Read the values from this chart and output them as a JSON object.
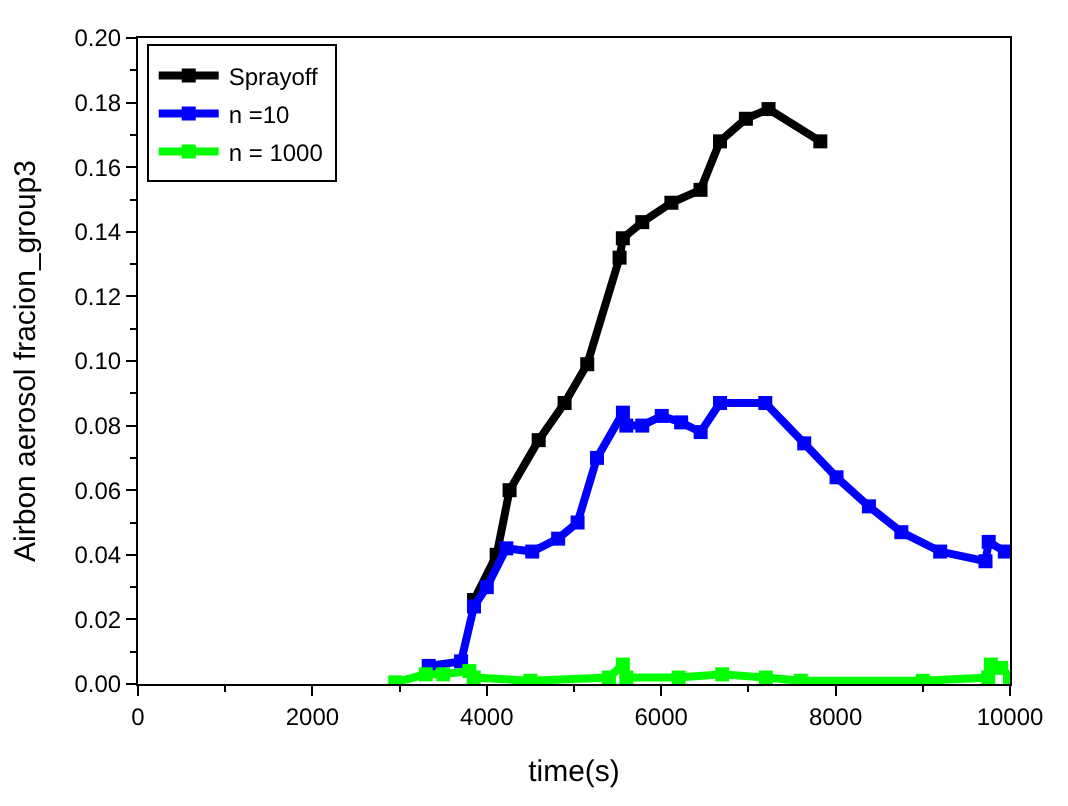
{
  "chart_data": {
    "type": "line",
    "xlabel": "time(s)",
    "ylabel": "Airbon aerosol fracion_group3",
    "xlim": [
      0,
      10000
    ],
    "xticks": [
      0,
      2000,
      4000,
      6000,
      8000,
      10000
    ],
    "ylim": [
      0,
      0.2
    ],
    "yticks": [
      {
        "value": 0,
        "label": "0.00"
      },
      {
        "value": 0.02,
        "label": "0.02"
      },
      {
        "value": 0.04,
        "label": "0.04"
      },
      {
        "value": 0.06,
        "label": "0.06"
      },
      {
        "value": 0.08,
        "label": "0.08"
      },
      {
        "value": 0.1,
        "label": "0.10"
      },
      {
        "value": 0.12,
        "label": "0.12"
      },
      {
        "value": 0.14,
        "label": "0.14"
      },
      {
        "value": 0.16,
        "label": "0.16"
      },
      {
        "value": 0.18,
        "label": "0.18"
      },
      {
        "value": 0.2,
        "label": "0.20"
      }
    ],
    "legend": "top left",
    "marker": "square",
    "line_style": "solid",
    "series": [
      {
        "name": "Sprayoff",
        "color": "#000000",
        "x": [
          3853,
          4113,
          4261,
          4595,
          4892,
          5152,
          5523,
          5560,
          5783,
          6117,
          6451,
          6674,
          6971,
          7231,
          7825
        ],
        "values": [
          0.026,
          0.04,
          0.06,
          0.0755,
          0.087,
          0.099,
          0.132,
          0.138,
          0.143,
          0.149,
          0.153,
          0.168,
          0.175,
          0.178,
          0.168
        ]
      },
      {
        "name": "n =10",
        "color": "#0000ff",
        "x": [
          3334,
          3705,
          3853,
          4000,
          4224,
          4521,
          4818,
          5041,
          5264,
          5561,
          5600,
          5783,
          6006,
          6229,
          6452,
          6674,
          7194,
          7640,
          8011,
          8382,
          8754,
          9199,
          9719,
          9756,
          9941
        ],
        "values": [
          0.0056,
          0.007,
          0.024,
          0.03,
          0.042,
          0.041,
          0.045,
          0.05,
          0.07,
          0.084,
          0.08,
          0.08,
          0.083,
          0.081,
          0.078,
          0.087,
          0.087,
          0.0745,
          0.064,
          0.055,
          0.047,
          0.041,
          0.038,
          0.044,
          0.041
        ]
      },
      {
        "name": "n = 1000",
        "color": "#00ff00",
        "x": [
          2950,
          3300,
          3500,
          3800,
          3850,
          4500,
          5400,
          5560,
          5600,
          6200,
          6700,
          7200,
          7600,
          9000,
          9750,
          9780,
          9900,
          10000
        ],
        "values": [
          0.0005,
          0.003,
          0.003,
          0.004,
          0.002,
          0.001,
          0.002,
          0.006,
          0.002,
          0.002,
          0.003,
          0.002,
          0.001,
          0.001,
          0.002,
          0.006,
          0.005,
          0.002
        ]
      }
    ]
  }
}
